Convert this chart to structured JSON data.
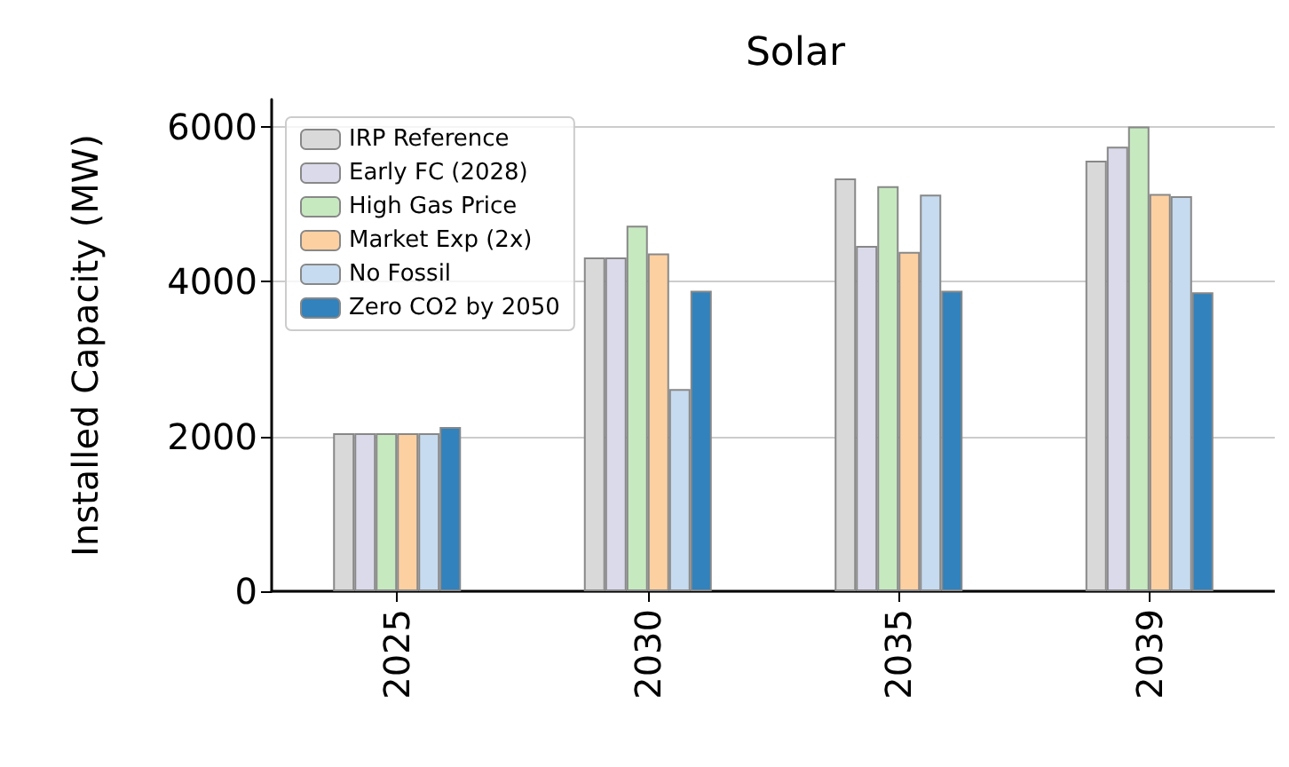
{
  "chart_data": {
    "type": "bar",
    "title": "Solar",
    "ylabel": "Installed Capacity (MW)",
    "categories": [
      "2025",
      "2030",
      "2035",
      "2039"
    ],
    "series": [
      {
        "name": "IRP Reference",
        "color": "#d9d9d9",
        "values": [
          2040,
          4310,
          5330,
          5560
        ]
      },
      {
        "name": "Early FC (2028)",
        "color": "#dadaeb",
        "values": [
          2040,
          4310,
          4460,
          5740
        ]
      },
      {
        "name": "High Gas Price",
        "color": "#c7e9c0",
        "values": [
          2040,
          4720,
          5230,
          6000
        ]
      },
      {
        "name": "Market Exp (2x)",
        "color": "#fdd0a2",
        "values": [
          2040,
          4360,
          4380,
          5130
        ]
      },
      {
        "name": "No Fossil",
        "color": "#c6dbef",
        "values": [
          2040,
          2610,
          5120,
          5100
        ]
      },
      {
        "name": "Zero CO2 by 2050",
        "color": "#3182bd",
        "values": [
          2120,
          3880,
          3880,
          3860
        ]
      }
    ],
    "ylim": [
      0,
      6350
    ],
    "yticks": [
      0,
      2000,
      4000,
      6000
    ],
    "grid": "y",
    "legend": "top left"
  }
}
